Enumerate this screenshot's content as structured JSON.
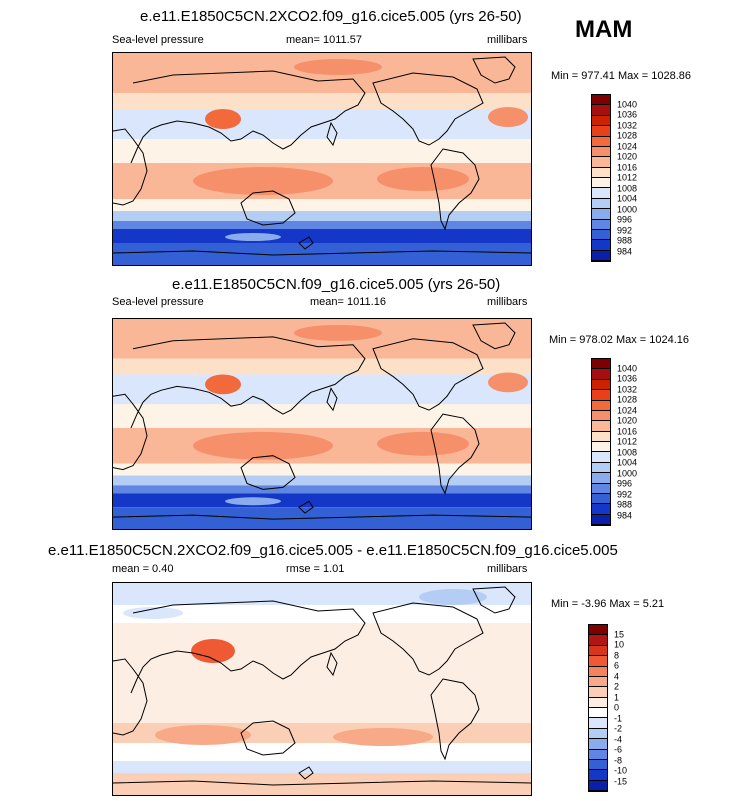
{
  "season": "MAM",
  "panels": [
    {
      "title": "e.e11.E1850C5CN.2XCO2.f09_g16.cice5.005 (yrs 26-50)",
      "left_label": "Sea-level pressure",
      "center_label": "mean= 1011.57",
      "right_label": "millibars",
      "stats": "Min = 977.41 Max = 1028.86",
      "colorbar": {
        "labels": [
          "1040",
          "1036",
          "1032",
          "1028",
          "1024",
          "1020",
          "1016",
          "1012",
          "1008",
          "1004",
          "1000",
          "996",
          "992",
          "988",
          "984"
        ],
        "colors": [
          "#7f0000",
          "#a50f0f",
          "#cc2200",
          "#e8401a",
          "#f26a3c",
          "#f6906a",
          "#f9b797",
          "#fde0c8",
          "#fdf3e7",
          "#d9e6fb",
          "#b4cdf5",
          "#8aacec",
          "#5f86e3",
          "#3460d6",
          "#1437c8",
          "#0a1faa"
        ]
      },
      "data_kind": "pressure"
    },
    {
      "title": "e.e11.E1850C5CN.f09_g16.cice5.005 (yrs 26-50)",
      "left_label": "Sea-level pressure",
      "center_label": "mean= 1011.16",
      "right_label": "millibars",
      "stats": "Min = 978.02 Max = 1024.16",
      "colorbar": {
        "labels": [
          "1040",
          "1036",
          "1032",
          "1028",
          "1024",
          "1020",
          "1016",
          "1012",
          "1008",
          "1004",
          "1000",
          "996",
          "992",
          "988",
          "984"
        ],
        "colors": [
          "#7f0000",
          "#a50f0f",
          "#cc2200",
          "#e8401a",
          "#f26a3c",
          "#f6906a",
          "#f9b797",
          "#fde0c8",
          "#fdf3e7",
          "#d9e6fb",
          "#b4cdf5",
          "#8aacec",
          "#5f86e3",
          "#3460d6",
          "#1437c8",
          "#0a1faa"
        ]
      },
      "data_kind": "pressure"
    },
    {
      "title": "e.e11.E1850C5CN.2XCO2.f09_g16.cice5.005 - e.e11.E1850C5CN.f09_g16.cice5.005",
      "left_label": "mean =   0.40",
      "center_label": "rmse =   1.01",
      "right_label": "millibars",
      "stats": "Min =  -3.96 Max =   5.21",
      "colorbar": {
        "labels": [
          "15",
          "10",
          "8",
          "6",
          "4",
          "2",
          "1",
          "0",
          "-1",
          "-2",
          "-4",
          "-6",
          "-8",
          "-10",
          "-15"
        ],
        "colors": [
          "#7f0000",
          "#b31414",
          "#d8361a",
          "#ef5a35",
          "#f4825c",
          "#f8a987",
          "#fbcfb5",
          "#fdeee3",
          "#ffffff",
          "#d9e6fb",
          "#b4cdf5",
          "#8aacec",
          "#5f86e3",
          "#3460d6",
          "#1437c8",
          "#0a1faa"
        ]
      },
      "data_kind": "difference"
    }
  ]
}
